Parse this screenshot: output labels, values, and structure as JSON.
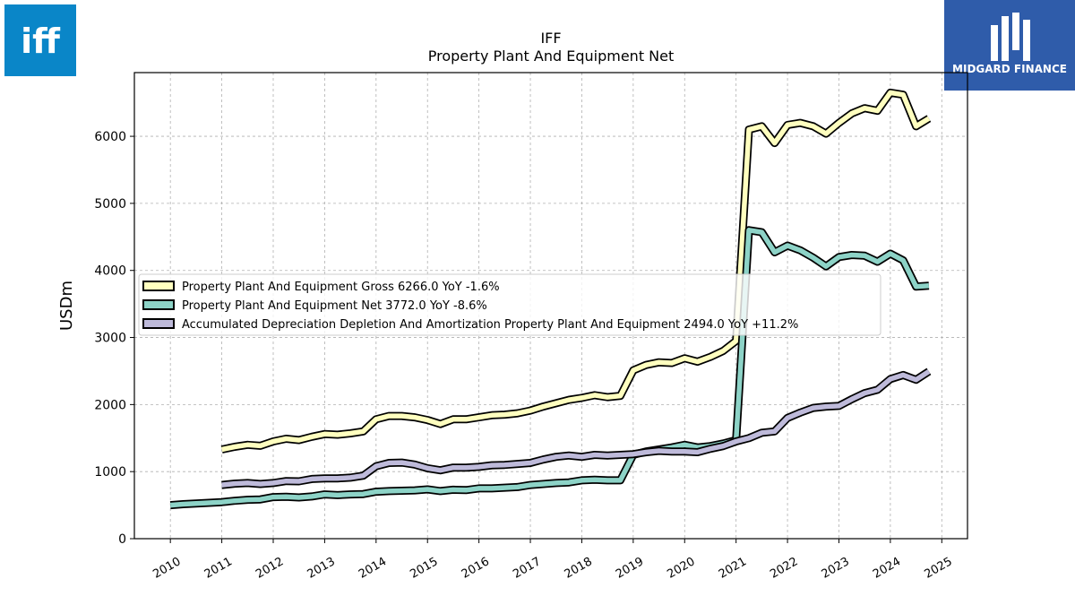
{
  "logos": {
    "left": {
      "text": "iff",
      "color": "#0a86c8"
    },
    "right": {
      "text": "MIDGARD FINANCE",
      "color": "#2f5caa"
    }
  },
  "chart_data": {
    "type": "line",
    "title": "IFF",
    "subtitle": "Property Plant And Equipment Net",
    "ylabel": "USDm",
    "xlabel": "",
    "xlim": [
      2009.3,
      2025.5
    ],
    "ylim": [
      0,
      6950
    ],
    "x_ticks": [
      "2010",
      "2011",
      "2012",
      "2013",
      "2014",
      "2015",
      "2016",
      "2017",
      "2018",
      "2019",
      "2020",
      "2021",
      "2022",
      "2023",
      "2024",
      "2025"
    ],
    "y_ticks": [
      "0",
      "1000",
      "2000",
      "3000",
      "4000",
      "5000",
      "6000"
    ],
    "grid": true,
    "legend_position": "center-left",
    "series": [
      {
        "name": "Property Plant And Equipment Gross  6266.0 YoY -1.6%",
        "color": "#ffffbf",
        "x": [
          2011.0,
          2011.25,
          2011.5,
          2011.75,
          2012.0,
          2012.25,
          2012.5,
          2012.75,
          2013.0,
          2013.25,
          2013.5,
          2013.75,
          2014.0,
          2014.25,
          2014.5,
          2014.75,
          2015.0,
          2015.25,
          2015.5,
          2015.75,
          2016.0,
          2016.25,
          2016.5,
          2016.75,
          2017.0,
          2017.25,
          2017.5,
          2017.75,
          2018.0,
          2018.25,
          2018.5,
          2018.75,
          2019.0,
          2019.25,
          2019.5,
          2019.75,
          2020.0,
          2020.25,
          2020.5,
          2020.75,
          2021.0,
          2021.25,
          2021.5,
          2021.75,
          2022.0,
          2022.25,
          2022.5,
          2022.75,
          2023.0,
          2023.25,
          2023.5,
          2023.75,
          2024.0,
          2024.25,
          2024.5,
          2024.75
        ],
        "values": [
          1330,
          1370,
          1400,
          1385,
          1450,
          1490,
          1470,
          1520,
          1560,
          1550,
          1570,
          1600,
          1780,
          1830,
          1830,
          1810,
          1770,
          1710,
          1780,
          1780,
          1810,
          1840,
          1850,
          1870,
          1910,
          1970,
          2020,
          2070,
          2100,
          2140,
          2110,
          2130,
          2510,
          2590,
          2630,
          2620,
          2690,
          2640,
          2710,
          2800,
          2950,
          6100,
          6150,
          5900,
          6170,
          6200,
          6150,
          6040,
          6200,
          6340,
          6420,
          6380,
          6650,
          6620,
          6150,
          6266
        ]
      },
      {
        "name": "Property Plant And Equipment Net  3772.0 YoY -8.6%",
        "color": "#8dd3c7",
        "x": [
          2010.0,
          2010.25,
          2010.5,
          2010.75,
          2011.0,
          2011.25,
          2011.5,
          2011.75,
          2012.0,
          2012.25,
          2012.5,
          2012.75,
          2013.0,
          2013.25,
          2013.5,
          2013.75,
          2014.0,
          2014.25,
          2014.5,
          2014.75,
          2015.0,
          2015.25,
          2015.5,
          2015.75,
          2016.0,
          2016.25,
          2016.5,
          2016.75,
          2017.0,
          2017.25,
          2017.5,
          2017.75,
          2018.0,
          2018.25,
          2018.5,
          2018.75,
          2019.0,
          2019.25,
          2019.5,
          2019.75,
          2020.0,
          2020.25,
          2020.5,
          2020.75,
          2021.0,
          2021.25,
          2021.5,
          2021.75,
          2022.0,
          2022.25,
          2022.5,
          2022.75,
          2023.0,
          2023.25,
          2023.5,
          2023.75,
          2024.0,
          2024.25,
          2024.5,
          2024.75
        ],
        "values": [
          500,
          515,
          525,
          535,
          545,
          565,
          580,
          585,
          620,
          625,
          615,
          630,
          660,
          650,
          660,
          665,
          700,
          710,
          715,
          720,
          735,
          710,
          730,
          725,
          750,
          750,
          760,
          770,
          800,
          815,
          830,
          840,
          870,
          880,
          870,
          870,
          1250,
          1300,
          1330,
          1360,
          1400,
          1360,
          1380,
          1420,
          1470,
          4600,
          4570,
          4270,
          4370,
          4300,
          4190,
          4060,
          4200,
          4230,
          4220,
          4130,
          4250,
          4150,
          3760,
          3772
        ]
      },
      {
        "name": "Accumulated Depreciation Depletion And Amortization Property Plant And Equipment  2494.0 YoY +11.2%",
        "color": "#bebada",
        "x": [
          2011.0,
          2011.25,
          2011.5,
          2011.75,
          2012.0,
          2012.25,
          2012.5,
          2012.75,
          2013.0,
          2013.25,
          2013.5,
          2013.75,
          2014.0,
          2014.25,
          2014.5,
          2014.75,
          2015.0,
          2015.25,
          2015.5,
          2015.75,
          2016.0,
          2016.25,
          2016.5,
          2016.75,
          2017.0,
          2017.25,
          2017.5,
          2017.75,
          2018.0,
          2018.25,
          2018.5,
          2018.75,
          2019.0,
          2019.25,
          2019.5,
          2019.75,
          2020.0,
          2020.25,
          2020.5,
          2020.75,
          2021.0,
          2021.25,
          2021.5,
          2021.75,
          2022.0,
          2022.25,
          2022.5,
          2022.75,
          2023.0,
          2023.25,
          2023.5,
          2023.75,
          2024.0,
          2024.25,
          2024.5,
          2024.75
        ],
        "values": [
          800,
          820,
          830,
          815,
          830,
          860,
          855,
          890,
          900,
          900,
          910,
          940,
          1080,
          1130,
          1135,
          1105,
          1050,
          1020,
          1060,
          1060,
          1070,
          1095,
          1100,
          1115,
          1130,
          1180,
          1220,
          1240,
          1220,
          1250,
          1240,
          1250,
          1260,
          1290,
          1310,
          1300,
          1300,
          1290,
          1340,
          1380,
          1450,
          1500,
          1580,
          1600,
          1800,
          1880,
          1950,
          1970,
          1980,
          2080,
          2170,
          2220,
          2380,
          2440,
          2370,
          2494
        ]
      }
    ]
  }
}
